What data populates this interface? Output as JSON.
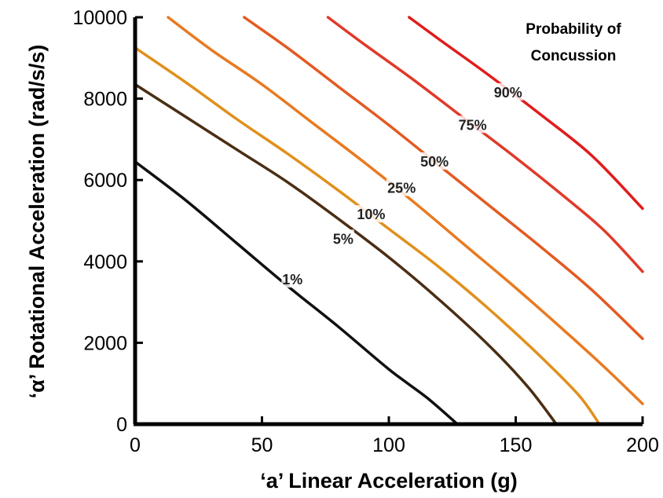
{
  "chart_data": {
    "type": "line",
    "title": "Probability of Concussion",
    "xlabel": "‘a’ Linear Acceleration (g)",
    "ylabel": "‘α’ Rotational Acceleration (rad/s/s)",
    "xlim": [
      0,
      200
    ],
    "ylim": [
      0,
      10000
    ],
    "xticks": [
      "0",
      "50",
      "100",
      "150",
      "200"
    ],
    "yticks": [
      "0",
      "2000",
      "4000",
      "6000",
      "8000",
      "10000"
    ],
    "grid": false,
    "legend": "none",
    "series": [
      {
        "name": "1%",
        "color": "#111111",
        "x": [
          0,
          20,
          40,
          60,
          80,
          100,
          115,
          127
        ],
        "y": [
          6450,
          5500,
          4450,
          3400,
          2400,
          1350,
          650,
          0
        ]
      },
      {
        "name": "5%",
        "color": "#4a2e14",
        "x": [
          0,
          20,
          40,
          60,
          80,
          100,
          120,
          140,
          155,
          166
        ],
        "y": [
          8350,
          7550,
          6750,
          5950,
          5050,
          4100,
          3050,
          1900,
          900,
          0
        ]
      },
      {
        "name": "10%",
        "color": "#e0901c",
        "x": [
          0,
          20,
          40,
          60,
          80,
          100,
          120,
          140,
          160,
          175,
          183
        ],
        "y": [
          9250,
          8400,
          7500,
          6650,
          5750,
          4800,
          3850,
          2800,
          1650,
          700,
          0
        ]
      },
      {
        "name": "25%",
        "color": "#e87a22",
        "x": [
          13,
          30,
          50,
          70,
          90,
          110,
          130,
          150,
          170,
          185,
          200
        ],
        "y": [
          10000,
          9200,
          8350,
          7400,
          6450,
          5450,
          4400,
          3350,
          2250,
          1400,
          500
        ]
      },
      {
        "name": "50%",
        "color": "#e35a22",
        "x": [
          43,
          60,
          80,
          100,
          120,
          140,
          160,
          180,
          200
        ],
        "y": [
          10000,
          9250,
          8300,
          7350,
          6350,
          5350,
          4350,
          3300,
          2100
        ]
      },
      {
        "name": "75%",
        "color": "#e03a2a",
        "x": [
          76,
          90,
          110,
          130,
          150,
          170,
          185,
          200
        ],
        "y": [
          10000,
          9350,
          8450,
          7500,
          6550,
          5550,
          4750,
          3750
        ]
      },
      {
        "name": "90%",
        "color": "#e01c1c",
        "x": [
          108,
          120,
          140,
          160,
          180,
          200
        ],
        "y": [
          10000,
          9450,
          8550,
          7600,
          6600,
          5300
        ]
      }
    ],
    "annotations": [
      {
        "text": "1%",
        "x": 62,
        "y": 3550
      },
      {
        "text": "5%",
        "x": 82,
        "y": 4550
      },
      {
        "text": "10%",
        "x": 93,
        "y": 5150
      },
      {
        "text": "25%",
        "x": 105,
        "y": 5800
      },
      {
        "text": "50%",
        "x": 118,
        "y": 6450
      },
      {
        "text": "75%",
        "x": 133,
        "y": 7350
      },
      {
        "text": "90%",
        "x": 147,
        "y": 8150
      }
    ]
  }
}
